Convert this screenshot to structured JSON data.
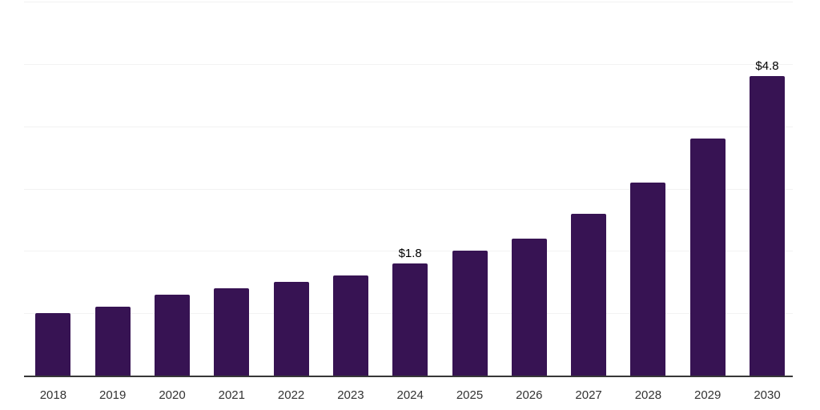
{
  "chart_data": {
    "type": "bar",
    "title": "",
    "categories": [
      "2018",
      "2019",
      "2020",
      "2021",
      "2022",
      "2023",
      "2024",
      "2025",
      "2026",
      "2027",
      "2028",
      "2029",
      "2030"
    ],
    "values": [
      1.0,
      1.1,
      1.3,
      1.4,
      1.5,
      1.6,
      1.8,
      2.0,
      2.2,
      2.6,
      3.1,
      3.8,
      4.8
    ],
    "annotations": [
      {
        "category": "2024",
        "text": "$1.8"
      },
      {
        "category": "2030",
        "text": "$4.8"
      }
    ],
    "xlabel": "",
    "ylabel": "",
    "ylim": [
      0,
      6
    ],
    "gridline_step": 1,
    "grid": true,
    "legend": "none",
    "colors": {
      "bar": "#371353",
      "gridline": "#f2f2f2",
      "axis_line": "#383838",
      "tick_label": "#333333",
      "annotation_label": "#000000",
      "background": "#ffffff"
    }
  }
}
